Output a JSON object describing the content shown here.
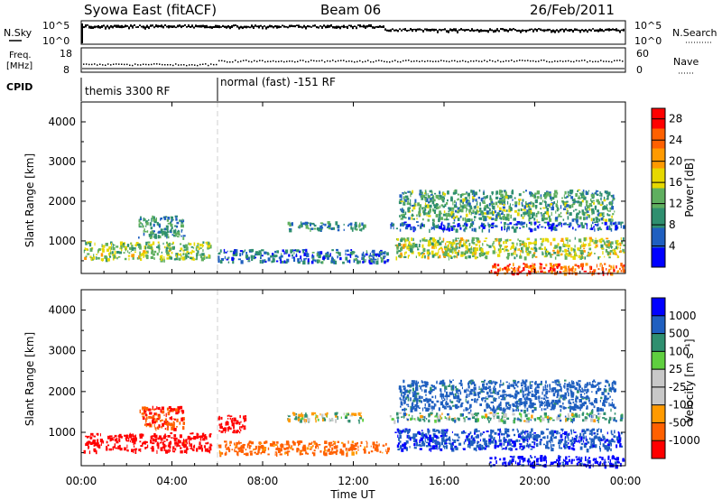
{
  "header": {
    "station": "Syowa East (fitACF)",
    "beam": "Beam 06",
    "date": "26/Feb/2011"
  },
  "status_panels": {
    "nsky_label": "N.Sky",
    "nsearch_label": "N.Search",
    "nsky_ticks": [
      "10^5",
      "10^0"
    ],
    "nsearch_ticks": [
      "10^5",
      "10^0"
    ],
    "freq_label_line1": "Freq.",
    "freq_label_line2": "[MHz]",
    "freq_ticks": [
      "18",
      "8"
    ],
    "nave_label": "Nave",
    "nave_ticks": [
      "60",
      "0"
    ],
    "cpid_label": "CPID",
    "cpid_modes": [
      {
        "label": "themis 3300 RF",
        "start_hour": 0,
        "end_hour": 6
      },
      {
        "label": "normal (fast) -151 RF",
        "start_hour": 6,
        "end_hour": 24
      }
    ]
  },
  "colors": {
    "power_scale": [
      "#0000ff",
      "#1f5fc0",
      "#2f8f6f",
      "#5faf5f",
      "#e6d800",
      "#ff9a00",
      "#ff6000",
      "#ff0000"
    ],
    "velocity_scale": [
      "#ff0000",
      "#ff6000",
      "#ff9a00",
      "#c8c8c8",
      "#c8c8c8",
      "#5fcf3f",
      "#2f8f6f",
      "#1f5fc0",
      "#0000ff"
    ]
  },
  "chart_data": [
    {
      "type": "heatmap",
      "title": "",
      "xlabel": "",
      "ylabel": "Slant Range [km]",
      "xlim": [
        0,
        24
      ],
      "ylim": [
        180,
        4500
      ],
      "x_ticks": [
        "00:00",
        "04:00",
        "08:00",
        "12:00",
        "16:00",
        "20:00",
        "00:00"
      ],
      "y_ticks": [
        1000,
        2000,
        3000,
        4000
      ],
      "colorbar_label": "Power [dB]",
      "colorbar_ticks": [
        4,
        8,
        12,
        16,
        20,
        24,
        28
      ],
      "colorbar_range": [
        0,
        30
      ],
      "regions": [
        {
          "t0": 0.1,
          "t1": 5.7,
          "r0": 550,
          "r1": 1000,
          "value": 14
        },
        {
          "t0": 2.5,
          "t1": 4.5,
          "r0": 1100,
          "r1": 1650,
          "value": 10
        },
        {
          "t0": 6.0,
          "t1": 13.5,
          "r0": 480,
          "r1": 800,
          "value": 7
        },
        {
          "t0": 9.0,
          "t1": 12.5,
          "r0": 1300,
          "r1": 1500,
          "value": 9
        },
        {
          "t0": 13.6,
          "t1": 23.9,
          "r0": 1300,
          "r1": 1500,
          "value": 6
        },
        {
          "t0": 13.8,
          "t1": 23.9,
          "r0": 600,
          "r1": 1100,
          "value": 15
        },
        {
          "t0": 18.0,
          "t1": 23.9,
          "r0": 200,
          "r1": 450,
          "value": 24
        },
        {
          "t0": 14.0,
          "t1": 23.5,
          "r0": 1550,
          "r1": 2300,
          "value": 11
        }
      ]
    },
    {
      "type": "heatmap",
      "title": "",
      "xlabel": "Time UT",
      "ylabel": "Slant Range [km]",
      "xlim": [
        0,
        24
      ],
      "ylim": [
        180,
        4500
      ],
      "x_ticks": [
        "00:00",
        "04:00",
        "08:00",
        "12:00",
        "16:00",
        "20:00",
        "00:00"
      ],
      "y_ticks": [
        1000,
        2000,
        3000,
        4000
      ],
      "colorbar_label": "Velocity [m s⁻¹]",
      "colorbar_ticks": [
        1000,
        500,
        100,
        25,
        -25,
        -100,
        -500,
        -1000
      ],
      "colorbar_range": [
        -1000,
        1000
      ],
      "regions": [
        {
          "t0": 0.1,
          "t1": 5.7,
          "r0": 550,
          "r1": 1000,
          "value": -700
        },
        {
          "t0": 2.5,
          "t1": 4.5,
          "r0": 1100,
          "r1": 1650,
          "value": -300
        },
        {
          "t0": 6.0,
          "t1": 7.2,
          "r0": 1000,
          "r1": 1450,
          "value": -900
        },
        {
          "t0": 6.0,
          "t1": 13.5,
          "r0": 480,
          "r1": 800,
          "value": -200
        },
        {
          "t0": 9.0,
          "t1": 12.5,
          "r0": 1300,
          "r1": 1500,
          "value": 0
        },
        {
          "t0": 13.6,
          "t1": 23.9,
          "r0": 1300,
          "r1": 1500,
          "value": 50
        },
        {
          "t0": 13.8,
          "t1": 23.9,
          "r0": 600,
          "r1": 1100,
          "value": 300
        },
        {
          "t0": 18.0,
          "t1": 23.9,
          "r0": 200,
          "r1": 450,
          "value": 600
        },
        {
          "t0": 14.0,
          "t1": 23.5,
          "r0": 1550,
          "r1": 2300,
          "value": 200
        }
      ]
    }
  ]
}
